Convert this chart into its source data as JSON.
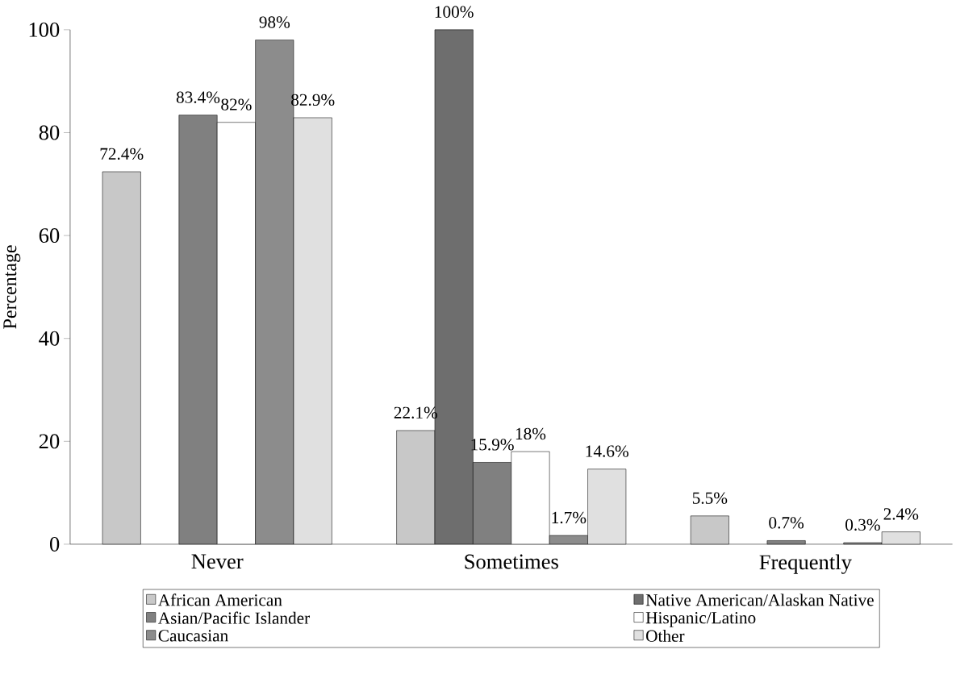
{
  "chart_data": {
    "type": "bar",
    "ylabel": "Percentage",
    "categories": [
      "Never",
      "Sometimes",
      "Frequently"
    ],
    "ylim": [
      0,
      100
    ],
    "yticks": [
      0,
      20,
      40,
      60,
      80,
      100
    ],
    "legend": "bottom",
    "series": [
      {
        "name": "African American",
        "color": "#c8c8c8",
        "values": [
          72.4,
          22.1,
          5.5
        ],
        "value_labels": [
          "72.4%",
          "22.1%",
          "5.5%"
        ]
      },
      {
        "name": "Native American/Alaskan Native",
        "color": "#6e6e6e",
        "values": [
          null,
          100,
          null
        ],
        "value_labels": [
          null,
          "100%",
          null
        ]
      },
      {
        "name": "Asian/Pacific Islander",
        "color": "#808080",
        "values": [
          83.4,
          15.9,
          0.7
        ],
        "value_labels": [
          "83.4%",
          "15.9%",
          "0.7%"
        ]
      },
      {
        "name": "Hispanic/Latino",
        "color": "#ffffff",
        "values": [
          82,
          18,
          null
        ],
        "value_labels": [
          "82%",
          "18%",
          null
        ]
      },
      {
        "name": "Caucasian",
        "color": "#8c8c8c",
        "values": [
          98,
          1.7,
          0.3
        ],
        "value_labels": [
          "98%",
          "1.7%",
          "0.3%"
        ]
      },
      {
        "name": "Other",
        "color": "#e0e0e0",
        "values": [
          82.9,
          14.6,
          2.4
        ],
        "value_labels": [
          "82.9%",
          "14.6%",
          "2.4%"
        ]
      }
    ]
  }
}
